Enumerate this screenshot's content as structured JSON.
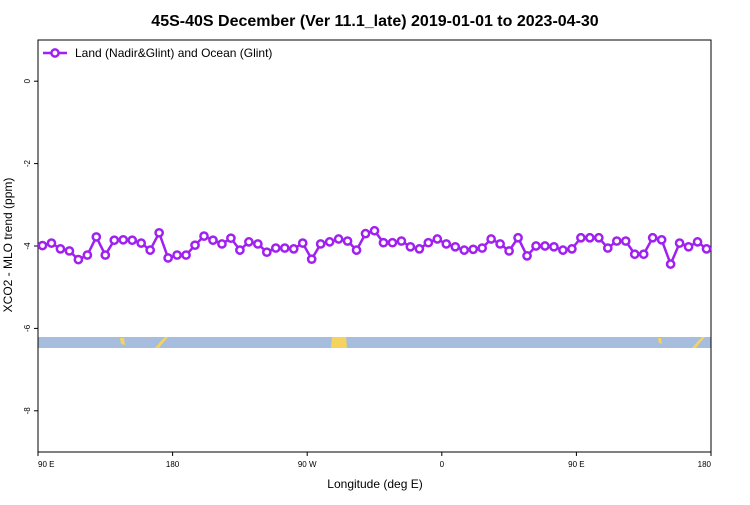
{
  "chart_data": {
    "type": "line",
    "title": "45S-40S December (Ver 11.1_late)   2019-01-01 to 2023-04-30",
    "x_label": "Longitude (deg E)",
    "y_label": "XCO2 - MLO trend (ppm)",
    "xlim": [
      90,
      540
    ],
    "xticks": [
      {
        "value": 90,
        "label": "90 E"
      },
      {
        "value": 180,
        "label": "180"
      },
      {
        "value": 270,
        "label": "90 W"
      },
      {
        "value": 360,
        "label": "0"
      },
      {
        "value": 450,
        "label": "90 E"
      },
      {
        "value": 540,
        "label": "180"
      }
    ],
    "ylim": [
      -9,
      1
    ],
    "yticks": [
      0,
      -2,
      -4,
      -6,
      -8
    ],
    "legend": "top-left",
    "x": [
      93,
      99,
      105,
      111,
      117,
      123,
      129,
      135,
      141,
      147,
      153,
      159,
      165,
      171,
      177,
      183,
      189,
      195,
      201,
      207,
      213,
      219,
      225,
      231,
      237,
      243,
      249,
      255,
      261,
      267,
      273,
      279,
      285,
      291,
      297,
      303,
      309,
      315,
      321,
      327,
      333,
      339,
      345,
      351,
      357,
      363,
      369,
      375,
      381,
      387,
      393,
      399,
      405,
      411,
      417,
      423,
      429,
      435,
      441,
      447,
      453,
      459,
      465,
      471,
      477,
      483,
      489,
      495,
      501,
      507,
      513,
      519,
      525,
      531,
      537
    ],
    "series": [
      {
        "name": "Land (Nadir&Glint) and Ocean (Glint)",
        "color": "#a020f0",
        "values": [
          -3.99,
          -3.93,
          -4.07,
          -4.12,
          -4.33,
          -4.22,
          -3.78,
          -4.22,
          -3.86,
          -3.85,
          -3.86,
          -3.93,
          -4.1,
          -3.68,
          -4.29,
          -4.22,
          -4.22,
          -3.98,
          -3.76,
          -3.86,
          -3.95,
          -3.81,
          -4.1,
          -3.9,
          -3.95,
          -4.15,
          -4.05,
          -4.05,
          -4.07,
          -3.93,
          -4.32,
          -3.95,
          -3.9,
          -3.83,
          -3.88,
          -4.1,
          -3.7,
          -3.63,
          -3.92,
          -3.92,
          -3.88,
          -4.02,
          -4.07,
          -3.92,
          -3.83,
          -3.95,
          -4.02,
          -4.1,
          -4.08,
          -4.05,
          -3.83,
          -3.95,
          -4.12,
          -3.8,
          -4.24,
          -4.0,
          -4.0,
          -4.02,
          -4.1,
          -4.07,
          -3.8,
          -3.8,
          -3.8,
          -4.05,
          -3.88,
          -3.88,
          -4.2,
          -4.2,
          -3.8,
          -3.85,
          -4.44,
          -3.93,
          -4.02,
          -3.9,
          -4.07
        ]
      }
    ]
  }
}
